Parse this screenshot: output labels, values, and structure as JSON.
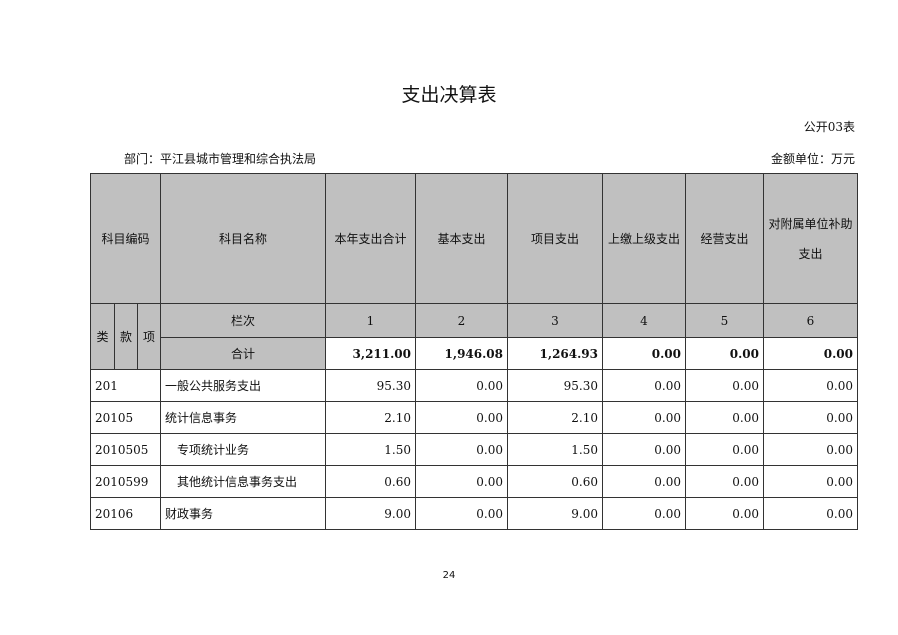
{
  "title": "支出决算表",
  "form_no": "公开03表",
  "department": "部门：平江县城市管理和综合执法局",
  "unit": "金额单位：万元",
  "headers": {
    "code": "科目编码",
    "name": "科目名称",
    "total": "本年支出合计",
    "basic": "基本支出",
    "project": "项目支出",
    "upper": "上缴上级支出",
    "business": "经营支出",
    "subsidy": "对附属单位补助支出",
    "lei": "类",
    "kuan": "款",
    "xiang": "项",
    "lanci": "栏次",
    "col1": "1",
    "col2": "2",
    "col3": "3",
    "col4": "4",
    "col5": "5",
    "col6": "6"
  },
  "total_row": {
    "label": "合计",
    "values": [
      "3,211.00",
      "1,946.08",
      "1,264.93",
      "0.00",
      "0.00",
      "0.00"
    ]
  },
  "rows": [
    {
      "code": "201",
      "name": "一般公共服务支出",
      "values": [
        "95.30",
        "0.00",
        "95.30",
        "0.00",
        "0.00",
        "0.00"
      ]
    },
    {
      "code": "20105",
      "name": "统计信息事务",
      "values": [
        "2.10",
        "0.00",
        "2.10",
        "0.00",
        "0.00",
        "0.00"
      ]
    },
    {
      "code": "2010505",
      "name": "专项统计业务",
      "values": [
        "1.50",
        "0.00",
        "1.50",
        "0.00",
        "0.00",
        "0.00"
      ]
    },
    {
      "code": "2010599",
      "name": "其他统计信息事务支出",
      "values": [
        "0.60",
        "0.00",
        "0.60",
        "0.00",
        "0.00",
        "0.00"
      ]
    },
    {
      "code": "20106",
      "name": "财政事务",
      "values": [
        "9.00",
        "0.00",
        "9.00",
        "0.00",
        "0.00",
        "0.00"
      ]
    }
  ],
  "page_number": "24"
}
